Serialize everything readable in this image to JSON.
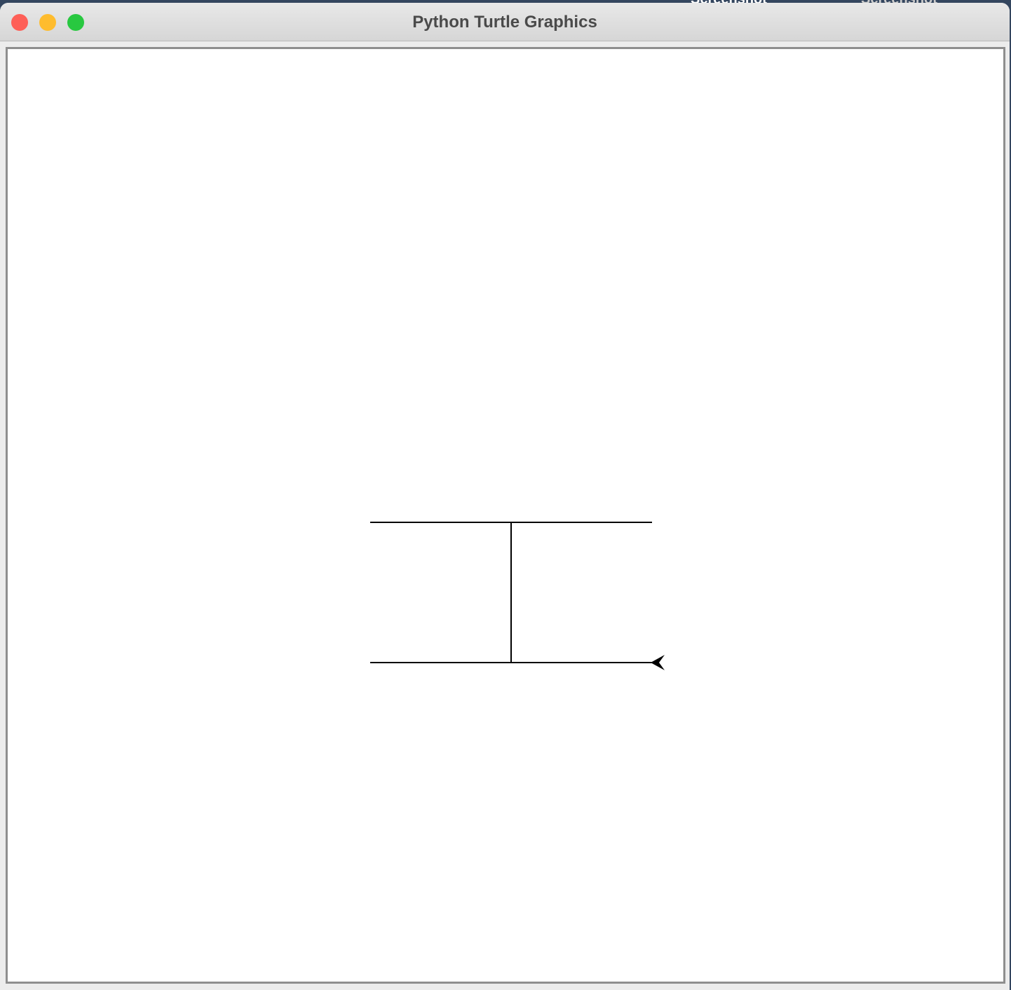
{
  "window": {
    "title": "Python Turtle Graphics"
  },
  "desktop": {
    "icons": [
      "Screenshot",
      "Screenshot"
    ]
  }
}
